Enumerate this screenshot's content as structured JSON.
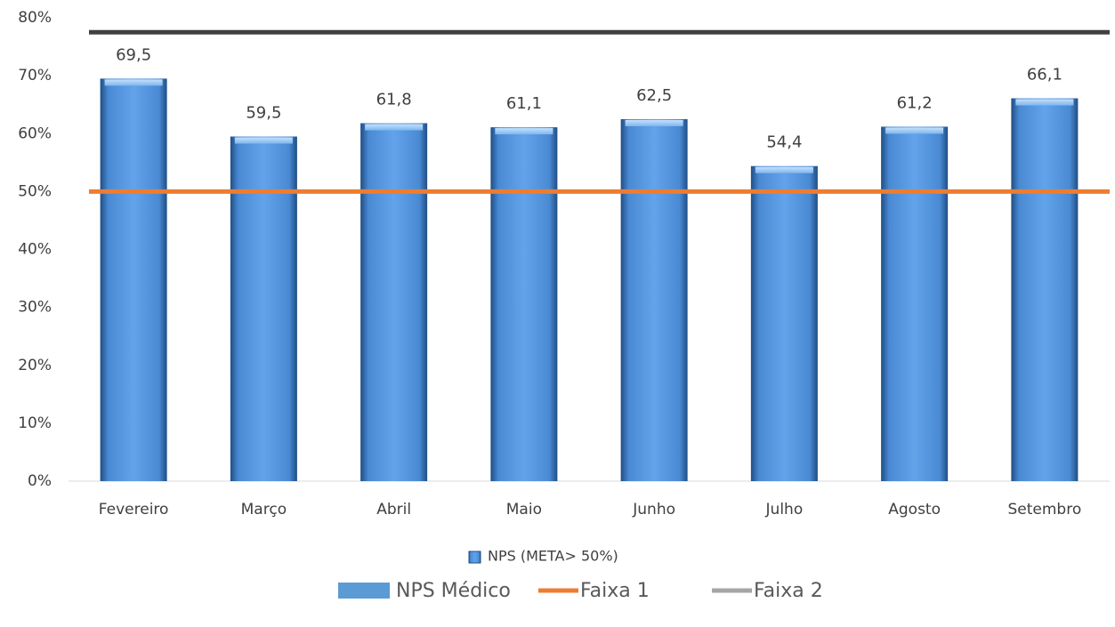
{
  "chart_data": {
    "type": "bar",
    "categories": [
      "Fevereiro",
      "Março",
      "Abril",
      "Maio",
      "Junho",
      "Julho",
      "Agosto",
      "Setembro"
    ],
    "series": [
      {
        "name": "NPS Médico",
        "type": "bar",
        "color": "#5b9bd5",
        "values": [
          69.5,
          59.5,
          61.8,
          61.1,
          62.5,
          54.4,
          61.2,
          66.1
        ],
        "value_labels": [
          "69,5",
          "59,5",
          "61,8",
          "61,1",
          "62,5",
          "54,4",
          "61,2",
          "66,1"
        ]
      },
      {
        "name": "Faixa 1",
        "type": "line",
        "color": "#ed7d31",
        "values": [
          50,
          50,
          50,
          50,
          50,
          50,
          50,
          50
        ]
      },
      {
        "name": "Faixa 2",
        "type": "line",
        "color": "#404040",
        "legend_color": "#a5a5a5",
        "values": [
          77.5,
          77.5,
          77.5,
          77.5,
          77.5,
          77.5,
          77.5,
          77.5
        ]
      }
    ],
    "secondary_legend": "NPS (META> 50%)",
    "ylim": [
      0,
      80
    ],
    "yticks": [
      {
        "value": 0,
        "label": "0%"
      },
      {
        "value": 10,
        "label": "10%"
      },
      {
        "value": 20,
        "label": "20%"
      },
      {
        "value": 30,
        "label": "30%"
      },
      {
        "value": 40,
        "label": "40%"
      },
      {
        "value": 50,
        "label": "50%"
      },
      {
        "value": 60,
        "label": "60%"
      },
      {
        "value": 70,
        "label": "70%"
      },
      {
        "value": 80,
        "label": "80%"
      }
    ],
    "grid": false
  }
}
